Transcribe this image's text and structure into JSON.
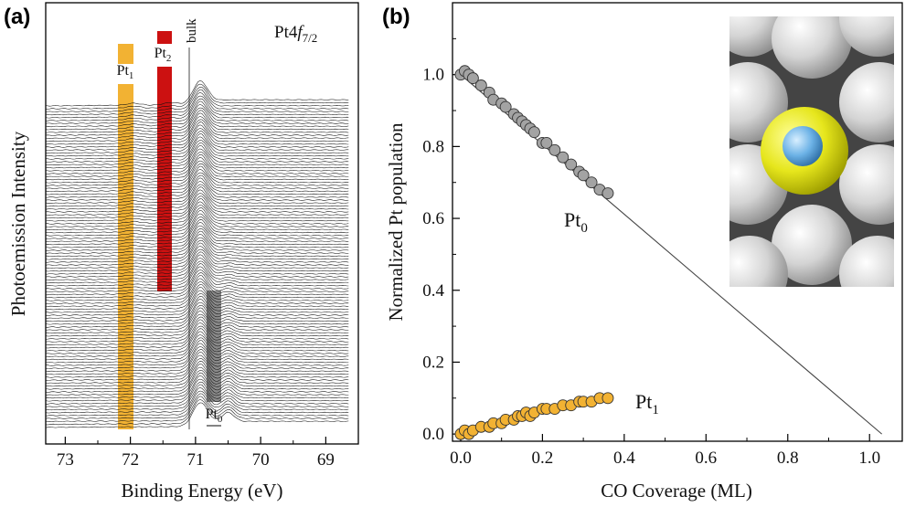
{
  "panels": {
    "a": {
      "label": "(a)",
      "xlabel": "Binding Energy (eV)",
      "ylabel": "Photoemission Intensity",
      "title_prefix": "Pt4",
      "title_f": "f",
      "title_sub": "7/2",
      "ticks": [
        "73",
        "72",
        "71",
        "70",
        "69"
      ]
    },
    "b": {
      "label": "(b)",
      "xlabel": "CO Coverage (ML)",
      "ylabel": "Normalized Pt population",
      "xticks": [
        "0.0",
        "0.2",
        "0.4",
        "0.6",
        "0.8",
        "1.0"
      ],
      "yticks": [
        "0.0",
        "0.2",
        "0.4",
        "0.6",
        "0.8",
        "1.0"
      ]
    }
  },
  "annotations": {
    "pt1": {
      "base": "Pt",
      "sub": "1"
    },
    "pt2": {
      "base": "Pt",
      "sub": "2"
    },
    "pt0": {
      "base": "Pt",
      "sub": "0"
    },
    "bulk": "bulk",
    "pt0_b": {
      "base": "Pt",
      "sub": "0"
    },
    "pt1_b": {
      "base": "Pt",
      "sub": "1"
    }
  },
  "chart_data": [
    {
      "type": "line",
      "title": "Pt4f7/2",
      "xlabel": "Binding Energy (eV)",
      "ylabel": "Photoemission Intensity",
      "xlim": [
        73.3,
        68.5
      ],
      "x_reversed": true,
      "n_spectra": 110,
      "series": [
        {
          "name": "Pt1",
          "center_eV": 71.95
        },
        {
          "name": "Pt2",
          "center_eV": 71.4
        },
        {
          "name": "bulk",
          "center_eV": 70.95
        },
        {
          "name": "Pt0",
          "center_eV": 70.5
        }
      ],
      "colors": {
        "Pt1": "#f2b233",
        "Pt2": "#cc1111",
        "Pt0": "#8a8a8a"
      }
    },
    {
      "type": "scatter",
      "xlabel": "CO Coverage (ML)",
      "ylabel": "Normalized Pt population",
      "xlim": [
        -0.02,
        1.08
      ],
      "ylim": [
        -0.02,
        1.2
      ],
      "series": [
        {
          "name": "Pt0",
          "color": "#a3a3a3",
          "x": [
            0.0,
            0.01,
            0.02,
            0.03,
            0.05,
            0.07,
            0.08,
            0.1,
            0.11,
            0.13,
            0.14,
            0.15,
            0.16,
            0.17,
            0.18,
            0.2,
            0.21,
            0.23,
            0.25,
            0.27,
            0.29,
            0.3,
            0.32,
            0.34,
            0.36
          ],
          "y": [
            1.0,
            1.01,
            1.0,
            0.99,
            0.97,
            0.95,
            0.93,
            0.92,
            0.91,
            0.89,
            0.88,
            0.87,
            0.86,
            0.85,
            0.84,
            0.81,
            0.81,
            0.79,
            0.77,
            0.75,
            0.73,
            0.72,
            0.7,
            0.68,
            0.67
          ]
        },
        {
          "name": "Pt1",
          "color": "#f2b233",
          "x": [
            0.0,
            0.01,
            0.02,
            0.03,
            0.05,
            0.07,
            0.08,
            0.1,
            0.11,
            0.13,
            0.14,
            0.15,
            0.16,
            0.17,
            0.18,
            0.2,
            0.21,
            0.23,
            0.25,
            0.27,
            0.29,
            0.3,
            0.32,
            0.34,
            0.36
          ],
          "y": [
            0.0,
            0.01,
            0.0,
            0.01,
            0.02,
            0.02,
            0.03,
            0.03,
            0.04,
            0.04,
            0.05,
            0.05,
            0.06,
            0.05,
            0.06,
            0.07,
            0.07,
            0.07,
            0.08,
            0.08,
            0.09,
            0.09,
            0.09,
            0.1,
            0.1
          ]
        },
        {
          "name": "fit",
          "type": "line",
          "x": [
            0.0,
            1.03
          ],
          "y": [
            1.0,
            0.0
          ],
          "color": "#444444"
        }
      ]
    }
  ]
}
